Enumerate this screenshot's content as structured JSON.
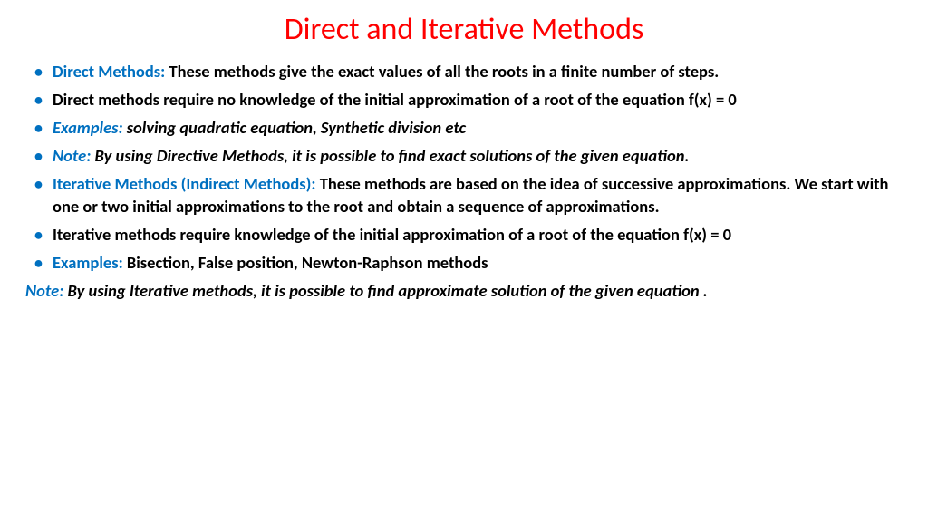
{
  "colors": {
    "title": "#ff0000",
    "bullet": "#0070c0",
    "blue": "#0070c0",
    "black": "#000000"
  },
  "title": "Direct and Iterative Methods",
  "items": [
    {
      "lead": "Direct Methods: ",
      "leadColor": "blue",
      "leadItalic": false,
      "body": "These methods give the exact values of all the roots in a finite number of steps.",
      "bodyItalic": false
    },
    {
      "lead": "",
      "leadColor": "black",
      "leadItalic": false,
      "body": "Direct methods require no knowledge of the initial approximation of a root of the equation f(x) = 0",
      "bodyItalic": false
    },
    {
      "lead": "Examples:  ",
      "leadColor": "blue",
      "leadItalic": true,
      "body": "solving quadratic equation, Synthetic  division etc",
      "bodyItalic": true
    },
    {
      "lead": " Note: ",
      "leadColor": "blue",
      "leadItalic": true,
      "body": "By using Directive Methods, it is possible to find exact solutions of the given equation.",
      "bodyItalic": true
    },
    {
      "lead": "Iterative Methods (Indirect Methods): ",
      "leadColor": "blue",
      "leadItalic": false,
      "body": "These methods are based on the idea of successive approximations. We start with one or two initial approximations to the root and obtain a sequence of approximations.",
      "bodyItalic": false
    },
    {
      "lead": "",
      "leadColor": "black",
      "leadItalic": false,
      "body": "Iterative methods require  knowledge of the initial approximation of a root of the equation f(x) = 0",
      "bodyItalic": false
    },
    {
      "lead": "Examples: ",
      "leadColor": "blue",
      "leadItalic": false,
      "body": "Bisection, False position, Newton-Raphson methods",
      "bodyItalic": false
    }
  ],
  "footnote": {
    "lead": "Note: ",
    "leadColor": "blue",
    "body": "By using Iterative methods, it is possible to find approximate solution of the given equation ."
  }
}
